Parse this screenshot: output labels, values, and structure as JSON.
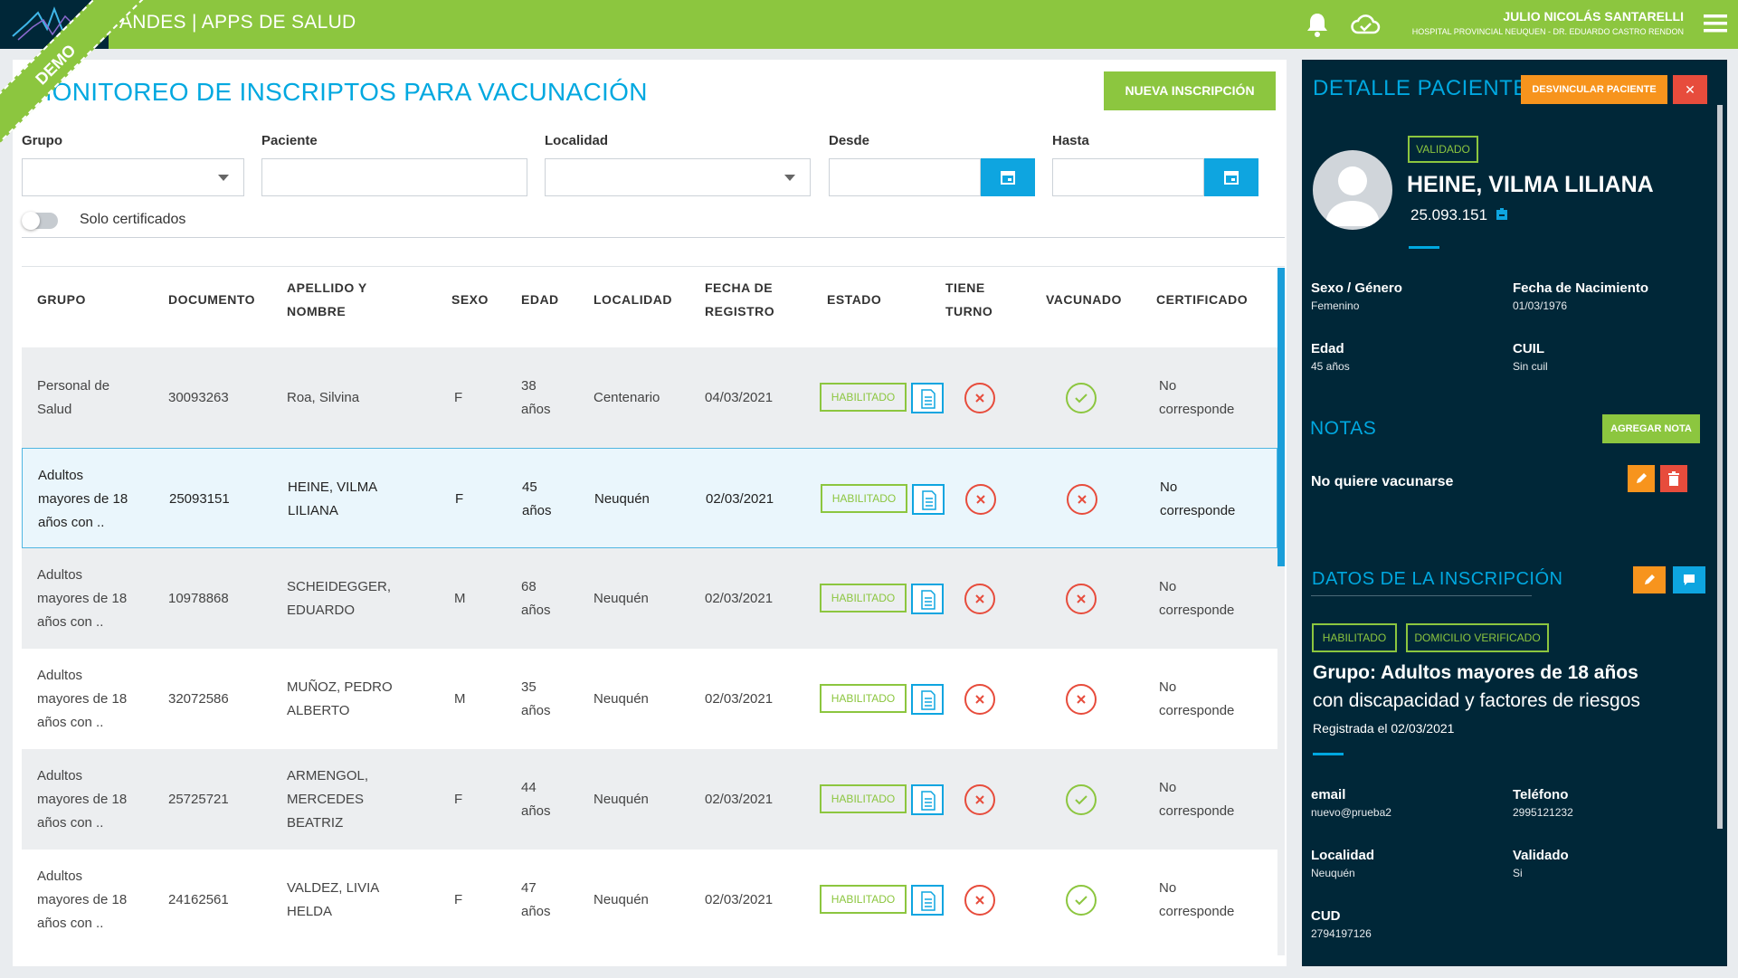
{
  "header": {
    "app_title": "ANDES | APPS DE SALUD",
    "user_name": "JULIO NICOLÁS SANTARELLI",
    "hospital": "HOSPITAL PROVINCIAL NEUQUEN - DR. EDUARDO CASTRO RENDON",
    "demo_label": "DEMO"
  },
  "page": {
    "title": "MONITOREO DE INSCRIPTOS PARA VACUNACIÓN",
    "new_button": "NUEVA INSCRIPCIÓN"
  },
  "filters": {
    "grupo_label": "Grupo",
    "paciente_label": "Paciente",
    "localidad_label": "Localidad",
    "desde_label": "Desde",
    "hasta_label": "Hasta",
    "solo_certificados": "Solo certificados"
  },
  "table": {
    "headers": {
      "grupo": "GRUPO",
      "documento": "DOCUMENTO",
      "apellido_1": "APELLIDO Y",
      "apellido_2": "NOMBRE",
      "sexo": "SEXO",
      "edad": "EDAD",
      "localidad": "LOCALIDAD",
      "fecha_1": "FECHA DE",
      "fecha_2": "REGISTRO",
      "estado": "ESTADO",
      "turno_1": "TIENE",
      "turno_2": "TURNO",
      "vacunado": "VACUNADO",
      "certificado": "CERTIFICADO"
    },
    "rows": [
      {
        "grupo": [
          "Personal de",
          "Salud"
        ],
        "documento": "30093263",
        "nombre": [
          "Roa, Silvina"
        ],
        "sexo": "F",
        "edad": [
          "38",
          "años"
        ],
        "localidad": "Centenario",
        "fecha": "04/03/2021",
        "estado": "HABILITADO",
        "turno": false,
        "vacunado": true,
        "certificado": [
          "No",
          "corresponde"
        ]
      },
      {
        "grupo": [
          "Adultos",
          "mayores de 18",
          "años con .."
        ],
        "documento": "25093151",
        "nombre": [
          "HEINE, VILMA",
          "LILIANA"
        ],
        "sexo": "F",
        "edad": [
          "45",
          "años"
        ],
        "localidad": "Neuquén",
        "fecha": "02/03/2021",
        "estado": "HABILITADO",
        "turno": false,
        "vacunado": false,
        "certificado": [
          "No",
          "corresponde"
        ]
      },
      {
        "grupo": [
          "Adultos",
          "mayores de 18",
          "años con .."
        ],
        "documento": "10978868",
        "nombre": [
          "SCHEIDEGGER,",
          "EDUARDO"
        ],
        "sexo": "M",
        "edad": [
          "68",
          "años"
        ],
        "localidad": "Neuquén",
        "fecha": "02/03/2021",
        "estado": "HABILITADO",
        "turno": false,
        "vacunado": false,
        "certificado": [
          "No",
          "corresponde"
        ]
      },
      {
        "grupo": [
          "Adultos",
          "mayores de 18",
          "años con .."
        ],
        "documento": "32072586",
        "nombre": [
          "MUÑOZ, PEDRO",
          "ALBERTO"
        ],
        "sexo": "M",
        "edad": [
          "35",
          "años"
        ],
        "localidad": "Neuquén",
        "fecha": "02/03/2021",
        "estado": "HABILITADO",
        "turno": false,
        "vacunado": false,
        "certificado": [
          "No",
          "corresponde"
        ]
      },
      {
        "grupo": [
          "Adultos",
          "mayores de 18",
          "años con .."
        ],
        "documento": "25725721",
        "nombre": [
          "ARMENGOL,",
          "MERCEDES",
          "BEATRIZ"
        ],
        "sexo": "F",
        "edad": [
          "44",
          "años"
        ],
        "localidad": "Neuquén",
        "fecha": "02/03/2021",
        "estado": "HABILITADO",
        "turno": false,
        "vacunado": true,
        "certificado": [
          "No",
          "corresponde"
        ]
      },
      {
        "grupo": [
          "Adultos",
          "mayores de 18",
          "años con .."
        ],
        "documento": "24162561",
        "nombre": [
          "VALDEZ, LIVIA",
          "HELDA"
        ],
        "sexo": "F",
        "edad": [
          "47",
          "años"
        ],
        "localidad": "Neuquén",
        "fecha": "02/03/2021",
        "estado": "HABILITADO",
        "turno": false,
        "vacunado": true,
        "certificado": [
          "No",
          "corresponde"
        ]
      }
    ]
  },
  "detail": {
    "title": "DETALLE PACIENTE",
    "unlink_button": "DESVINCULAR PACIENTE",
    "close_button": "✕",
    "status_badge": "VALIDADO",
    "name": "HEINE, VILMA LILIANA",
    "document": "25.093.151",
    "fields": {
      "sexo_label": "Sexo / Género",
      "sexo_value": "Femenino",
      "nac_label": "Fecha de Nacimiento",
      "nac_value": "01/03/1976",
      "edad_label": "Edad",
      "edad_value": "45 años",
      "cuil_label": "CUIL",
      "cuil_value": "Sin cuil"
    },
    "notas_title": "NOTAS",
    "add_note_button": "AGREGAR NOTA",
    "note_text": "No quiere vacunarse",
    "inscripcion_title": "DATOS DE LA INSCRIPCIÓN",
    "badge_habilitado": "HABILITADO",
    "badge_domicilio": "DOMICILIO VERIFICADO",
    "grupo_line1": "Grupo: Adultos mayores de 18 años",
    "grupo_line2": "con discapacidad y factores de riesgos",
    "registered": "Registrada el 02/03/2021",
    "contact": {
      "email_label": "email",
      "email_value": "nuevo@prueba2",
      "tel_label": "Teléfono",
      "tel_value": "2995121232",
      "loc_label": "Localidad",
      "loc_value": "Neuquén",
      "val_label": "Validado",
      "val_value": "Si",
      "cud_label": "CUD",
      "cud_value": "2794197126"
    }
  },
  "colors": {
    "brand_green": "#8cc63f",
    "accent_blue": "#00a8e0",
    "panel_dark": "#002738",
    "danger_red": "#e74c3c",
    "warning_orange": "#f7941d"
  }
}
